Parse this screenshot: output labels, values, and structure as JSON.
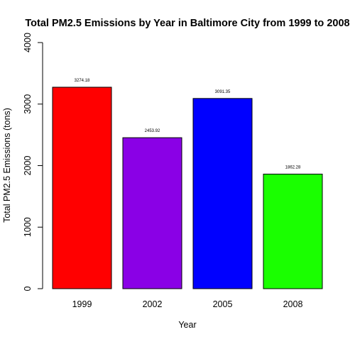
{
  "chart_data": {
    "type": "bar",
    "title": "Total PM2.5 Emissions by Year in Baltimore City from 1999 to 2008",
    "xlabel": "Year",
    "ylabel": "Total PM2.5 Emissions (tons)",
    "categories": [
      "1999",
      "2002",
      "2005",
      "2008"
    ],
    "values": [
      3274.18,
      2453.92,
      3091.35,
      1862.28
    ],
    "value_labels": [
      "3274.18",
      "2453.92",
      "3091.35",
      "1862.28"
    ],
    "colors": [
      "#ff0000",
      "#8a00e6",
      "#0000ff",
      "#1aff00"
    ],
    "ylim": [
      0,
      4000
    ],
    "yticks": [
      0,
      1000,
      2000,
      3000,
      4000
    ],
    "ytick_labels": [
      "0",
      "1000",
      "2000",
      "3000",
      "4000"
    ],
    "grid": false,
    "legend": "none"
  }
}
